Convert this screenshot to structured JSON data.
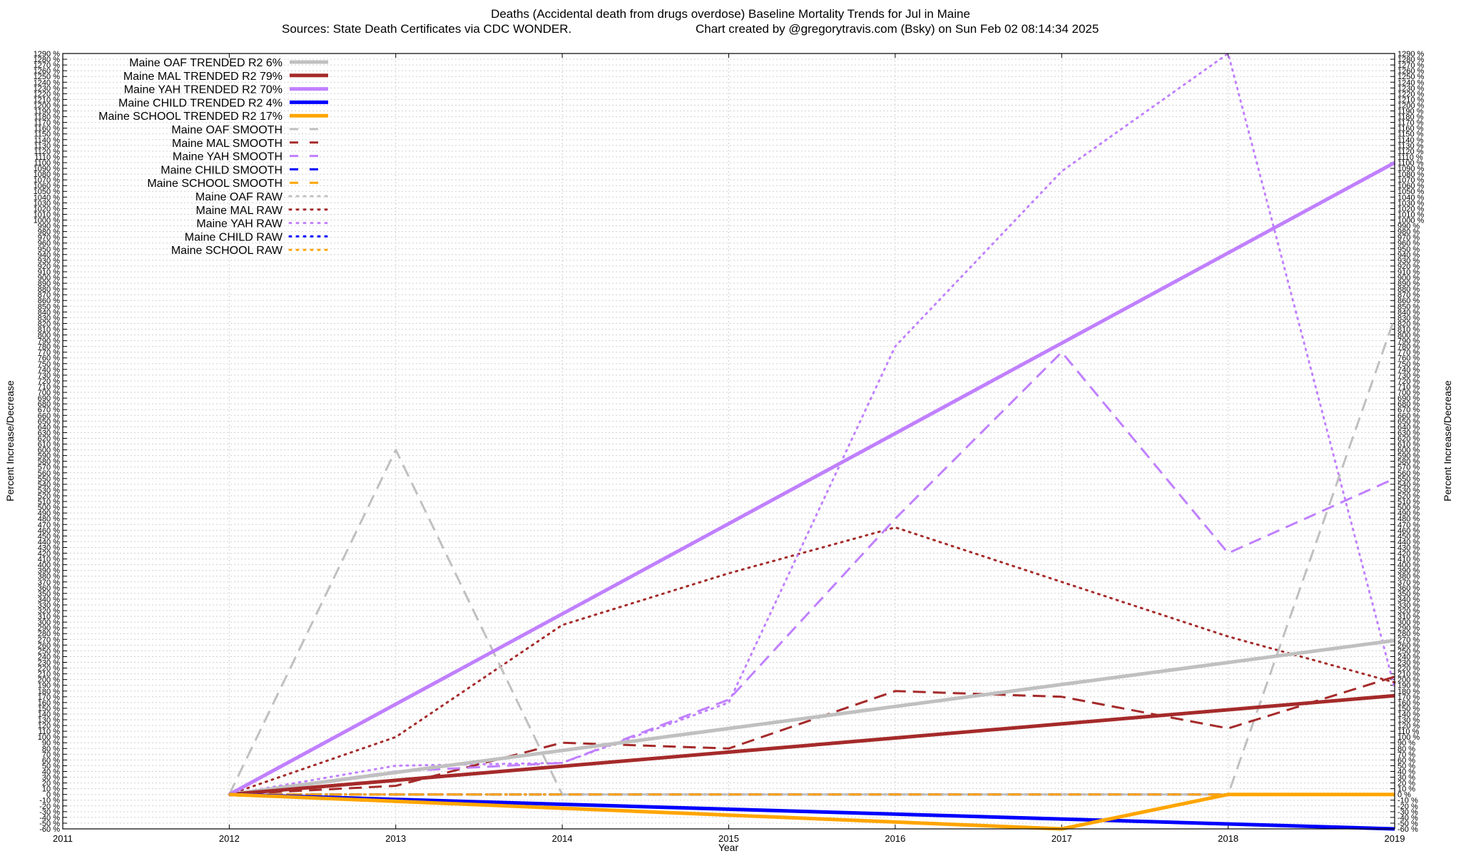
{
  "chart_data": {
    "type": "line",
    "title": "Deaths (Accidental death from drugs overdose)  Baseline Mortality Trends for Jul in Maine",
    "subtitle_left": "Sources: State Death Certificates via CDC WONDER.",
    "subtitle_right": "Chart created by @gregorytravis.com (Bsky) on Sun Feb 02 08:14:34 2025",
    "xlabel": "Year",
    "ylabel": "Percent Increase/Decrease",
    "xlim": [
      2011,
      2019
    ],
    "ylim": [
      -60,
      1290
    ],
    "x_ticks": [
      "2011",
      "2012",
      "2013",
      "2014",
      "2015",
      "2016",
      "2017",
      "2018",
      "2019"
    ],
    "y_tick_step": 10,
    "y_tick_suffix": " %",
    "grid": true,
    "legend_position": "top-left",
    "x": [
      2012,
      2013,
      2014,
      2015,
      2016,
      2017,
      2018,
      2019
    ],
    "series": [
      {
        "name": "Maine OAF TRENDED R2  6%",
        "style": "solid",
        "color": "#c0c0c0",
        "width": 5,
        "x": [
          2012,
          2019
        ],
        "values": [
          0,
          268
        ]
      },
      {
        "name": "Maine MAL TRENDED R2  79%",
        "style": "solid",
        "color": "#a52a2a",
        "width": 5,
        "x": [
          2012,
          2019
        ],
        "values": [
          0,
          172
        ]
      },
      {
        "name": "Maine YAH TRENDED R2  70%",
        "style": "solid",
        "color": "#c080ff",
        "width": 5,
        "x": [
          2012,
          2019
        ],
        "values": [
          0,
          1100
        ]
      },
      {
        "name": "Maine CHILD TRENDED R2  4%",
        "style": "solid",
        "color": "#0000ff",
        "width": 5,
        "x": [
          2012,
          2019
        ],
        "values": [
          0,
          -70
        ]
      },
      {
        "name": "Maine SCHOOL TRENDED R2  17%",
        "style": "solid",
        "color": "#ffa500",
        "width": 5,
        "x": [
          2012,
          2017,
          2018,
          2019
        ],
        "values": [
          0,
          -90,
          0,
          0
        ],
        "values_note_excluded": true
      },
      {
        "name": "Maine OAF SMOOTH",
        "style": "dashed",
        "color": "#c0c0c0",
        "width": 3,
        "values": [
          0,
          600,
          0,
          0,
          0,
          0,
          0,
          830
        ]
      },
      {
        "name": "Maine MAL SMOOTH",
        "style": "dashed",
        "color": "#a52a2a",
        "width": 3,
        "values": [
          0,
          15,
          90,
          80,
          180,
          170,
          115,
          205
        ]
      },
      {
        "name": "Maine YAH SMOOTH",
        "style": "dashed",
        "color": "#c080ff",
        "width": 3,
        "values": [
          0,
          40,
          55,
          165,
          480,
          770,
          420,
          550
        ]
      },
      {
        "name": "Maine CHILD SMOOTH",
        "style": "dashed",
        "color": "#0000ff",
        "width": 3,
        "values": [
          0,
          0,
          0,
          0,
          0,
          0,
          0,
          0
        ]
      },
      {
        "name": "Maine SCHOOL SMOOTH",
        "style": "dashed",
        "color": "#ffa500",
        "width": 3,
        "values": [
          0,
          0,
          0,
          0,
          0,
          0,
          0,
          0
        ]
      },
      {
        "name": "Maine OAF RAW",
        "style": "dotted",
        "color": "#c0c0c0",
        "width": 3,
        "values": [
          0,
          0,
          0,
          0,
          0,
          0,
          0,
          0
        ]
      },
      {
        "name": "Maine MAL RAW",
        "style": "dotted",
        "color": "#a52a2a",
        "width": 3,
        "values": [
          0,
          100,
          295,
          385,
          465,
          370,
          275,
          195
        ]
      },
      {
        "name": "Maine YAH RAW",
        "style": "dotted",
        "color": "#c080ff",
        "width": 3,
        "values": [
          0,
          50,
          55,
          160,
          780,
          1085,
          1290,
          185
        ]
      },
      {
        "name": "Maine CHILD RAW",
        "style": "dotted",
        "color": "#0000ff",
        "width": 3,
        "values": [
          0,
          0,
          0,
          0,
          0,
          0,
          0,
          0
        ]
      },
      {
        "name": "Maine SCHOOL RAW",
        "style": "dotted",
        "color": "#ffa500",
        "width": 3,
        "values": [
          0,
          0,
          0,
          0,
          0,
          0,
          0,
          0
        ]
      }
    ]
  }
}
